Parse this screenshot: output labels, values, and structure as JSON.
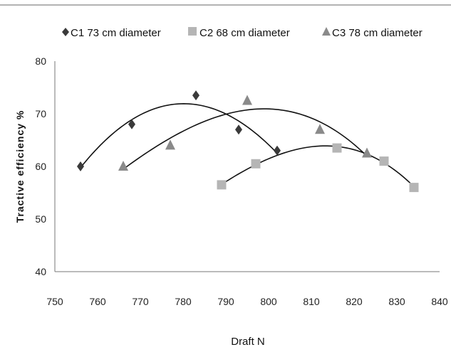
{
  "chart_data": {
    "type": "scatter",
    "xlabel": "Draft N",
    "ylabel": "Tractive efficiency %",
    "xlim": [
      750,
      840
    ],
    "ylim": [
      40,
      80
    ],
    "x_ticks": [
      "750",
      "760",
      "770",
      "780",
      "790",
      "800",
      "810",
      "820",
      "830",
      "840"
    ],
    "y_ticks": [
      "40",
      "50",
      "60",
      "70",
      "80"
    ],
    "grid": false,
    "legend_position": "top",
    "trendline": "polynomial",
    "series": [
      {
        "name": "C1 73 cm diameter",
        "marker": "diamond",
        "color": "#3a3a3a",
        "points": [
          [
            756,
            60
          ],
          [
            768,
            68
          ],
          [
            783,
            73.5
          ],
          [
            793,
            67
          ],
          [
            802,
            63
          ]
        ]
      },
      {
        "name": "C2 68 cm diameter",
        "marker": "square",
        "color": "#b5b5b5",
        "points": [
          [
            789,
            56.5
          ],
          [
            797,
            60.5
          ],
          [
            816,
            63.5
          ],
          [
            827,
            61
          ],
          [
            834,
            56
          ]
        ]
      },
      {
        "name": "C3 78 cm diameter",
        "marker": "triangle",
        "color": "#8a8a8a",
        "points": [
          [
            766,
            60
          ],
          [
            777,
            64
          ],
          [
            795,
            72.5
          ],
          [
            812,
            67
          ],
          [
            823,
            62.5
          ]
        ]
      }
    ]
  }
}
